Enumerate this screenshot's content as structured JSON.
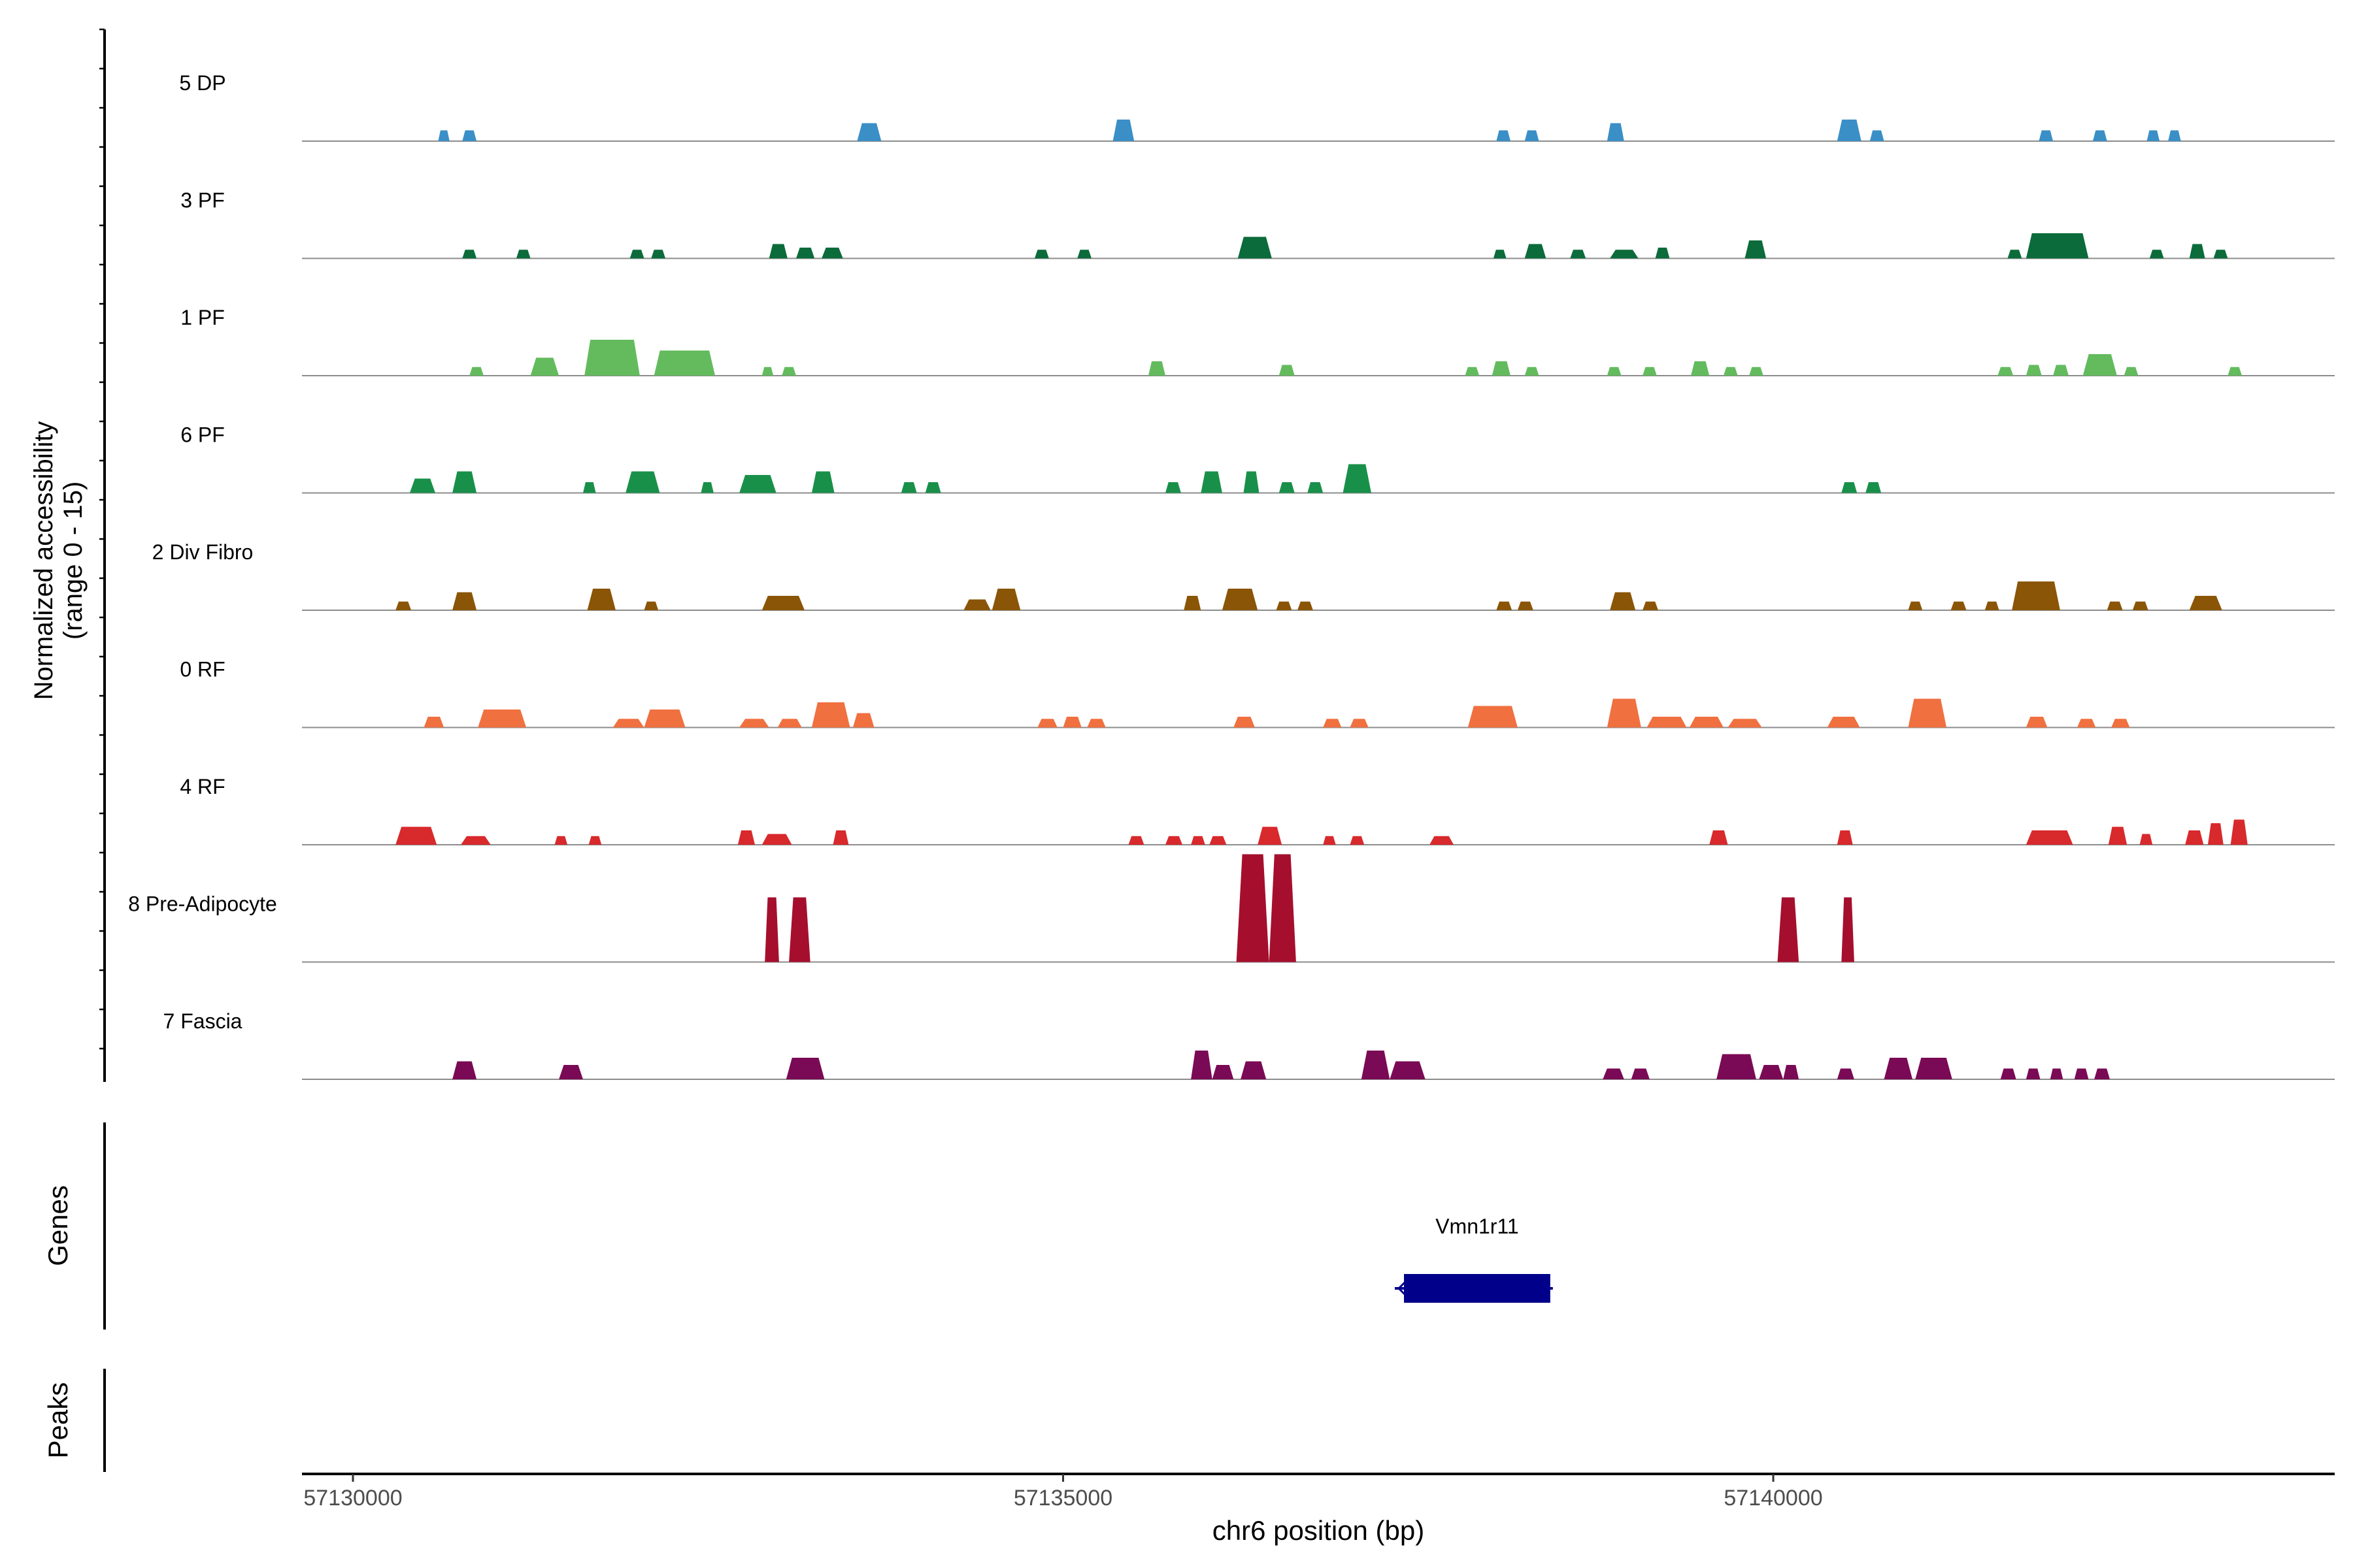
{
  "chart_data": {
    "type": "area",
    "xlabel": "chr6 position (bp)",
    "x_ticks": [
      57130000,
      57135000,
      57140000
    ],
    "x_range": [
      57129650,
      57143950
    ],
    "coverage_ylabel": "Normalized accessibility",
    "coverage_ylabel_range": "(range 0 - 15)",
    "y_range": [
      0,
      15
    ],
    "genes_label": "Genes",
    "peaks_label": "Peaks",
    "tracks": [
      {
        "name": "5 DP",
        "color": "#3a8fc7",
        "peaks": [
          [
            57130600,
            57130680,
            1.5
          ],
          [
            57130770,
            57130870,
            1.5
          ],
          [
            57133550,
            57133720,
            2.5
          ],
          [
            57135350,
            57135500,
            3
          ],
          [
            57138050,
            57138150,
            1.5
          ],
          [
            57138250,
            57138350,
            1.5
          ],
          [
            57138830,
            57138950,
            2.5
          ],
          [
            57140450,
            57140620,
            3
          ],
          [
            57140680,
            57140780,
            1.5
          ],
          [
            57141870,
            57141970,
            1.5
          ],
          [
            57142250,
            57142350,
            1.5
          ],
          [
            57142630,
            57142720,
            1.5
          ],
          [
            57142780,
            57142870,
            1.5
          ]
        ]
      },
      {
        "name": "3 PF",
        "color": "#0b6b3a",
        "peaks": [
          [
            57130770,
            57130870,
            1.2
          ],
          [
            57131150,
            57131250,
            1.2
          ],
          [
            57131950,
            57132050,
            1.2
          ],
          [
            57132100,
            57132200,
            1.2
          ],
          [
            57132930,
            57133060,
            2
          ],
          [
            57133120,
            57133250,
            1.5
          ],
          [
            57133300,
            57133450,
            1.5
          ],
          [
            57134800,
            57134900,
            1.2
          ],
          [
            57135100,
            57135200,
            1.2
          ],
          [
            57136230,
            57136470,
            3
          ],
          [
            57138030,
            57138120,
            1.2
          ],
          [
            57138250,
            57138400,
            2
          ],
          [
            57138570,
            57138680,
            1.2
          ],
          [
            57138850,
            57139050,
            1.2
          ],
          [
            57139170,
            57139270,
            1.5
          ],
          [
            57139800,
            57139950,
            2.5
          ],
          [
            57141650,
            57141750,
            1.2
          ],
          [
            57141780,
            57142220,
            3.5
          ],
          [
            57142650,
            57142750,
            1.2
          ],
          [
            57142930,
            57143040,
            2
          ],
          [
            57143100,
            57143200,
            1.2
          ]
        ]
      },
      {
        "name": "1 PF",
        "color": "#63bb5e",
        "peaks": [
          [
            57130820,
            57130920,
            1.2
          ],
          [
            57131250,
            57131450,
            2.5
          ],
          [
            57131630,
            57132020,
            5
          ],
          [
            57132120,
            57132550,
            3.5
          ],
          [
            57132880,
            57132960,
            1.2
          ],
          [
            57133020,
            57133120,
            1.2
          ],
          [
            57135600,
            57135720,
            2
          ],
          [
            57136520,
            57136630,
            1.5
          ],
          [
            57137830,
            57137930,
            1.2
          ],
          [
            57138020,
            57138150,
            2
          ],
          [
            57138250,
            57138350,
            1.2
          ],
          [
            57138830,
            57138930,
            1.2
          ],
          [
            57139080,
            57139180,
            1.2
          ],
          [
            57139420,
            57139550,
            2
          ],
          [
            57139650,
            57139750,
            1.2
          ],
          [
            57139830,
            57139930,
            1.2
          ],
          [
            57141580,
            57141690,
            1.2
          ],
          [
            57141780,
            57141890,
            1.5
          ],
          [
            57141970,
            57142080,
            1.5
          ],
          [
            57142180,
            57142420,
            3
          ],
          [
            57142470,
            57142570,
            1.2
          ],
          [
            57143200,
            57143300,
            1.2
          ]
        ]
      },
      {
        "name": "6 PF",
        "color": "#19904a",
        "peaks": [
          [
            57130400,
            57130580,
            2
          ],
          [
            57130700,
            57130870,
            3
          ],
          [
            57131620,
            57131710,
            1.5
          ],
          [
            57131920,
            57132160,
            3
          ],
          [
            57132450,
            57132540,
            1.5
          ],
          [
            57132720,
            57132980,
            2.5
          ],
          [
            57133230,
            57133390,
            3
          ],
          [
            57133860,
            57133970,
            1.5
          ],
          [
            57134030,
            57134140,
            1.5
          ],
          [
            57135720,
            57135830,
            1.5
          ],
          [
            57135970,
            57136120,
            3
          ],
          [
            57136270,
            57136380,
            3
          ],
          [
            57136520,
            57136630,
            1.5
          ],
          [
            57136720,
            57136830,
            1.5
          ],
          [
            57136970,
            57137170,
            4
          ],
          [
            57140480,
            57140590,
            1.5
          ],
          [
            57140650,
            57140760,
            1.5
          ]
        ]
      },
      {
        "name": "2 Div Fibro",
        "color": "#8a5506",
        "peaks": [
          [
            57130300,
            57130410,
            1.2
          ],
          [
            57130700,
            57130870,
            2.5
          ],
          [
            57131650,
            57131850,
            3
          ],
          [
            57132050,
            57132150,
            1.2
          ],
          [
            57132880,
            57133180,
            2
          ],
          [
            57134300,
            57134490,
            1.5
          ],
          [
            57134500,
            57134700,
            3
          ],
          [
            57135850,
            57135970,
            2
          ],
          [
            57136120,
            57136370,
            3
          ],
          [
            57136500,
            57136610,
            1.2
          ],
          [
            57136650,
            57136760,
            1.2
          ],
          [
            57138050,
            57138160,
            1.2
          ],
          [
            57138200,
            57138310,
            1.2
          ],
          [
            57138850,
            57139030,
            2.5
          ],
          [
            57139080,
            57139190,
            1.2
          ],
          [
            57140950,
            57141050,
            1.2
          ],
          [
            57141250,
            57141360,
            1.2
          ],
          [
            57141490,
            57141590,
            1.2
          ],
          [
            57141680,
            57142020,
            4
          ],
          [
            57142350,
            57142460,
            1.2
          ],
          [
            57142530,
            57142640,
            1.2
          ],
          [
            57142930,
            57143160,
            2
          ]
        ]
      },
      {
        "name": "0 RF",
        "color": "#f07040",
        "peaks": [
          [
            57130500,
            57130640,
            1.5
          ],
          [
            57130880,
            57131220,
            2.5
          ],
          [
            57131830,
            57132050,
            1.2
          ],
          [
            57132050,
            57132340,
            2.5
          ],
          [
            57132720,
            57132930,
            1.2
          ],
          [
            57132990,
            57133160,
            1.2
          ],
          [
            57133230,
            57133500,
            3.5
          ],
          [
            57133520,
            57133670,
            2
          ],
          [
            57134820,
            57134960,
            1.2
          ],
          [
            57135000,
            57135130,
            1.5
          ],
          [
            57135170,
            57135300,
            1.2
          ],
          [
            57136200,
            57136350,
            1.5
          ],
          [
            57136830,
            57136960,
            1.2
          ],
          [
            57137020,
            57137150,
            1.2
          ],
          [
            57137850,
            57138200,
            3
          ],
          [
            57138830,
            57139070,
            4
          ],
          [
            57139110,
            57139390,
            1.5
          ],
          [
            57139410,
            57139650,
            1.5
          ],
          [
            57139680,
            57139920,
            1.2
          ],
          [
            57140380,
            57140610,
            1.5
          ],
          [
            57140950,
            57141220,
            4
          ],
          [
            57141780,
            57141930,
            1.5
          ],
          [
            57142140,
            57142270,
            1.2
          ],
          [
            57142380,
            57142510,
            1.2
          ]
        ]
      },
      {
        "name": "4 RF",
        "color": "#d8292c",
        "peaks": [
          [
            57130300,
            57130590,
            2.5
          ],
          [
            57130760,
            57130970,
            1.2
          ],
          [
            57131420,
            57131510,
            1.2
          ],
          [
            57131660,
            57131750,
            1.2
          ],
          [
            57132710,
            57132830,
            2
          ],
          [
            57132880,
            57133090,
            1.5
          ],
          [
            57133380,
            57133490,
            2
          ],
          [
            57135460,
            57135570,
            1.2
          ],
          [
            57135720,
            57135840,
            1.2
          ],
          [
            57135900,
            57136000,
            1.2
          ],
          [
            57136030,
            57136150,
            1.2
          ],
          [
            57136370,
            57136540,
            2.5
          ],
          [
            57136830,
            57136920,
            1.2
          ],
          [
            57137020,
            57137120,
            1.2
          ],
          [
            57137580,
            57137750,
            1.2
          ],
          [
            57139550,
            57139680,
            2
          ],
          [
            57140450,
            57140560,
            2
          ],
          [
            57141780,
            57142110,
            2
          ],
          [
            57142360,
            57142490,
            2.5
          ],
          [
            57142580,
            57142670,
            1.5
          ],
          [
            57142900,
            57143030,
            2
          ],
          [
            57143060,
            57143170,
            3
          ],
          [
            57143220,
            57143340,
            3.5
          ]
        ]
      },
      {
        "name": "8 Pre-Adipocyte",
        "color": "#a50f2d",
        "peaks": [
          [
            57132900,
            57133000,
            9
          ],
          [
            57133070,
            57133220,
            9
          ],
          [
            57136220,
            57136450,
            15
          ],
          [
            57136450,
            57136640,
            15
          ],
          [
            57140030,
            57140180,
            9
          ],
          [
            57140480,
            57140570,
            9
          ]
        ]
      },
      {
        "name": "7 Fascia",
        "color": "#7a0a55",
        "peaks": [
          [
            57130700,
            57130870,
            2.5
          ],
          [
            57131450,
            57131620,
            2
          ],
          [
            57133050,
            57133320,
            3
          ],
          [
            57135900,
            57136050,
            4
          ],
          [
            57136050,
            57136200,
            2
          ],
          [
            57136250,
            57136430,
            2.5
          ],
          [
            57137100,
            57137300,
            4
          ],
          [
            57137300,
            57137550,
            2.5
          ],
          [
            57138800,
            57138950,
            1.5
          ],
          [
            57139000,
            57139130,
            1.5
          ],
          [
            57139600,
            57139880,
            3.5
          ],
          [
            57139900,
            57140070,
            2
          ],
          [
            57140070,
            57140180,
            2
          ],
          [
            57140450,
            57140570,
            1.5
          ],
          [
            57140780,
            57140980,
            3
          ],
          [
            57141000,
            57141260,
            3
          ],
          [
            57141600,
            57141710,
            1.5
          ],
          [
            57141780,
            57141880,
            1.5
          ],
          [
            57141950,
            57142040,
            1.5
          ],
          [
            57142120,
            57142220,
            1.5
          ],
          [
            57142260,
            57142370,
            1.5
          ]
        ]
      }
    ],
    "genes": [
      {
        "name": "Vmn1r11",
        "start": 57137400,
        "end": 57138430,
        "strand": "-",
        "color": "#00008b"
      }
    ]
  }
}
